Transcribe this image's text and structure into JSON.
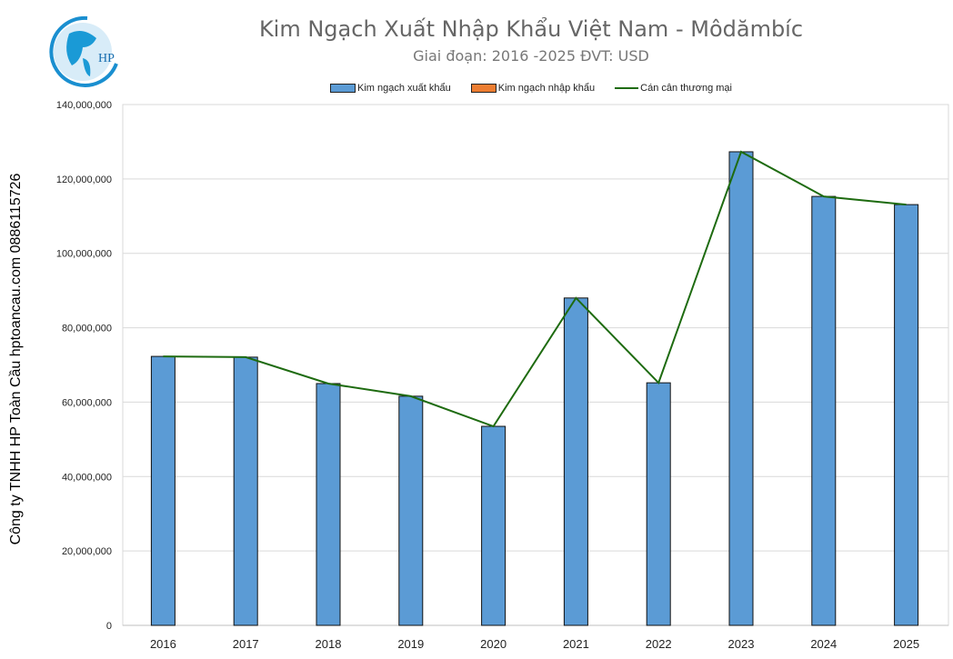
{
  "chart_data": {
    "type": "bar",
    "title": "Kim Ngạch Xuất Nhập Khẩu Việt Nam - Môdămbíc",
    "subtitle": "Giai đoạn: 2016 -2025  ĐVT: USD",
    "side_label": "Công ty TNHH HP Toàn Cầu hptoancau.com 0886115726",
    "categories": [
      "2016",
      "2017",
      "2018",
      "2019",
      "2020",
      "2021",
      "2022",
      "2023",
      "2024",
      "2025"
    ],
    "series": [
      {
        "name": "Kim ngạch xuất khẩu",
        "type": "bar",
        "color": "#5b9bd5",
        "values": [
          72300000,
          72100000,
          65000000,
          61600000,
          53500000,
          88000000,
          65200000,
          127300000,
          115300000,
          113100000
        ]
      },
      {
        "name": "Kim ngạch nhập khẩu",
        "type": "bar",
        "color": "#ed7d31",
        "values": [
          0,
          0,
          0,
          0,
          0,
          0,
          0,
          0,
          0,
          0
        ]
      },
      {
        "name": "Cán cân thương mại",
        "type": "line",
        "color": "#1e6b10",
        "values": [
          72300000,
          72100000,
          65000000,
          61600000,
          53500000,
          88000000,
          65200000,
          127300000,
          115300000,
          113100000
        ]
      }
    ],
    "ylim": [
      0,
      140000000
    ],
    "yticks": [
      "0",
      "20,000,000",
      "40,000,000",
      "60,000,000",
      "80,000,000",
      "100,000,000",
      "120,000,000",
      "140,000,000"
    ],
    "grid": true,
    "legend": "top"
  },
  "logo": {
    "text": "HP"
  }
}
